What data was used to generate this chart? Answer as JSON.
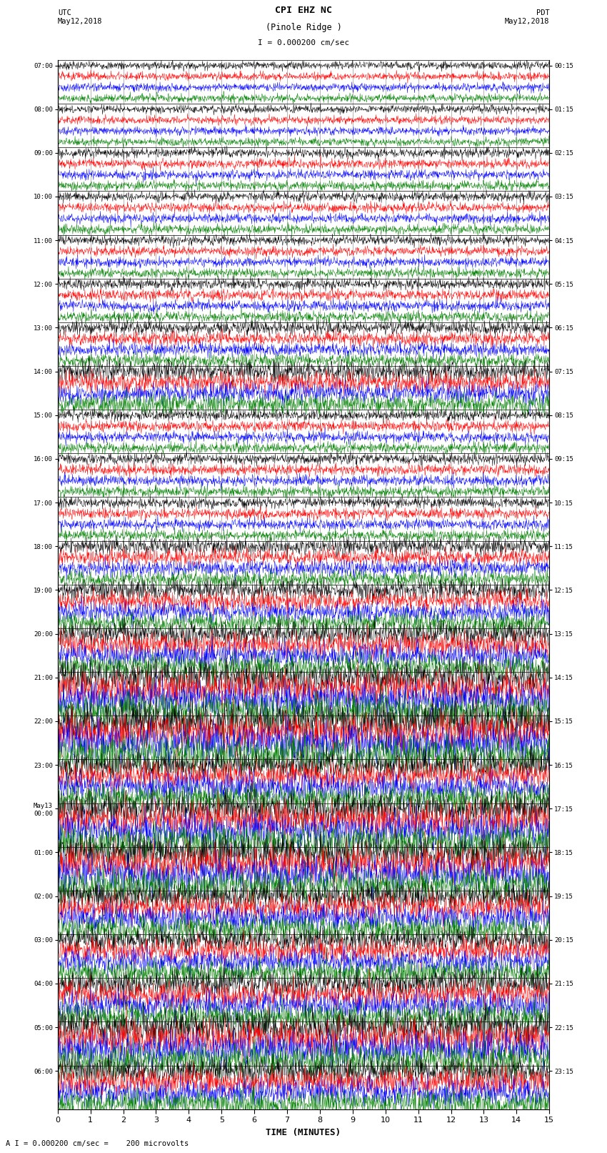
{
  "title_line1": "CPI EHZ NC",
  "title_line2": "(Pinole Ridge )",
  "scale_label": "I = 0.000200 cm/sec",
  "utc_label": "UTC\nMay12,2018",
  "pdt_label": "PDT\nMay12,2018",
  "xlabel": "TIME (MINUTES)",
  "bottom_note": "A I = 0.000200 cm/sec =    200 microvolts",
  "left_times": [
    "07:00",
    "08:00",
    "09:00",
    "10:00",
    "11:00",
    "12:00",
    "13:00",
    "14:00",
    "15:00",
    "16:00",
    "17:00",
    "18:00",
    "19:00",
    "20:00",
    "21:00",
    "22:00",
    "23:00",
    "May13\n00:00",
    "01:00",
    "02:00",
    "03:00",
    "04:00",
    "05:00",
    "06:00"
  ],
  "right_times": [
    "00:15",
    "01:15",
    "02:15",
    "03:15",
    "04:15",
    "05:15",
    "06:15",
    "07:15",
    "08:15",
    "09:15",
    "10:15",
    "11:15",
    "12:15",
    "13:15",
    "14:15",
    "15:15",
    "16:15",
    "17:15",
    "18:15",
    "19:15",
    "20:15",
    "21:15",
    "22:15",
    "23:15"
  ],
  "colors": [
    "black",
    "red",
    "blue",
    "green"
  ],
  "num_rows": 24,
  "traces_per_row": 4,
  "xmin": 0,
  "xmax": 15,
  "bg_color": "white",
  "grid_color": "#999999",
  "fig_width": 8.5,
  "fig_height": 16.13,
  "amplitude_by_row": [
    0.6,
    0.6,
    0.7,
    0.7,
    0.7,
    0.8,
    1.0,
    1.5,
    0.8,
    0.8,
    0.8,
    1.2,
    1.5,
    1.8,
    2.5,
    2.8,
    2.0,
    2.5,
    2.5,
    2.0,
    1.8,
    2.0,
    2.5,
    2.0
  ]
}
